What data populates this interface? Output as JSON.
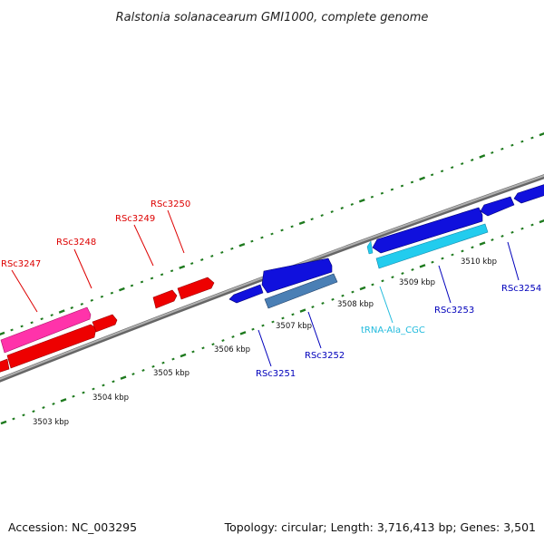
{
  "title": "Ralstonia solanacearum GMI1000, complete genome",
  "footer": {
    "accession": "Accession: NC_003295",
    "summary": "Topology: circular; Length: 3,716,413 bp; Genes: 3,501"
  },
  "colors": {
    "backbone": "#8a8a8a",
    "tick": "#1e7a1e",
    "forward_gene": "#ee0000",
    "forward_cds_alt": "#ff33aa",
    "reverse_gene": "#1010dd",
    "reverse_cds_alt": "#4a7fb5",
    "trna": "#22ccee",
    "label_red": "#dd0000",
    "label_blue": "#0000bb",
    "label_cyan": "#22bbdd"
  },
  "scale": {
    "tick_labels": [
      "3503 kbp",
      "3504 kbp",
      "3505 kbp",
      "3506 kbp",
      "3507 kbp",
      "3508 kbp",
      "3509 kbp",
      "3510 kbp"
    ]
  },
  "features": [
    {
      "name": "RSc3247",
      "strand": "forward",
      "color_key": "label_red"
    },
    {
      "name": "RSc3248",
      "strand": "forward",
      "color_key": "label_red"
    },
    {
      "name": "RSc3249",
      "strand": "forward",
      "color_key": "label_red"
    },
    {
      "name": "RSc3250",
      "strand": "forward",
      "color_key": "label_red"
    },
    {
      "name": "RSc3251",
      "strand": "reverse",
      "color_key": "label_blue"
    },
    {
      "name": "RSc3252",
      "strand": "reverse",
      "color_key": "label_blue"
    },
    {
      "name": "tRNA-Ala_CGC",
      "strand": "reverse",
      "color_key": "label_cyan"
    },
    {
      "name": "RSc3253",
      "strand": "reverse",
      "color_key": "label_blue"
    },
    {
      "name": "RSc3254",
      "strand": "reverse",
      "color_key": "label_blue"
    }
  ]
}
